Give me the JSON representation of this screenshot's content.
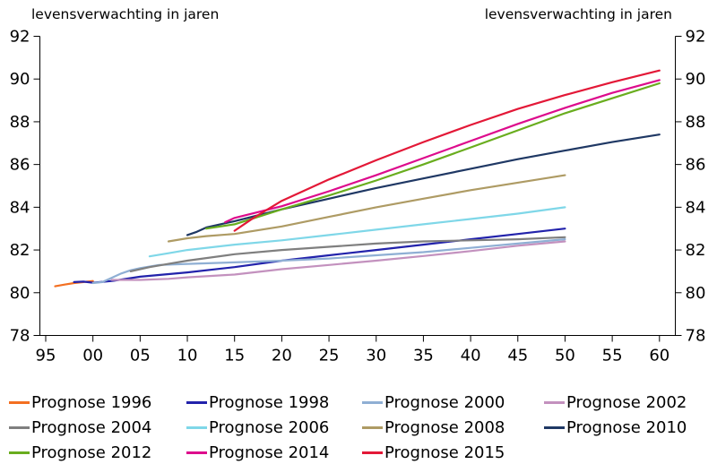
{
  "chart_data": {
    "type": "line",
    "title_left": "levensverwachting in jaren",
    "title_right": "levensverwachting in jaren",
    "grid": false,
    "legend_position": "bottom",
    "x_axis": {
      "tick_years": [
        1995,
        2000,
        2005,
        2010,
        2015,
        2020,
        2025,
        2030,
        2035,
        2040,
        2045,
        2050,
        2055,
        2060
      ],
      "tick_labels": [
        "95",
        "00",
        "05",
        "10",
        "15",
        "20",
        "25",
        "30",
        "35",
        "40",
        "45",
        "50",
        "55",
        "60"
      ],
      "min_year": 1994.3,
      "max_year": 2061.6
    },
    "y_axis": {
      "ticks": [
        78,
        80,
        82,
        84,
        86,
        88,
        90,
        92
      ],
      "tick_labels": [
        "78",
        "80",
        "82",
        "84",
        "86",
        "88",
        "90",
        "92"
      ],
      "min": 78,
      "max": 92
    },
    "series": [
      {
        "name": "Prognose 1996",
        "color": "#F36F21",
        "points": [
          [
            1996,
            80.3
          ],
          [
            1997,
            80.38
          ],
          [
            1998,
            80.45
          ],
          [
            1999,
            80.5
          ],
          [
            2000,
            80.55
          ]
        ]
      },
      {
        "name": "Prognose 1998",
        "color": "#2222AB",
        "points": [
          [
            1998,
            80.5
          ],
          [
            1999,
            80.52
          ],
          [
            2000,
            80.47
          ],
          [
            2002,
            80.55
          ],
          [
            2005,
            80.75
          ],
          [
            2010,
            80.95
          ],
          [
            2015,
            81.2
          ],
          [
            2020,
            81.5
          ],
          [
            2025,
            81.75
          ],
          [
            2030,
            82.0
          ],
          [
            2035,
            82.25
          ],
          [
            2040,
            82.5
          ],
          [
            2045,
            82.75
          ],
          [
            2050,
            83.0
          ]
        ]
      },
      {
        "name": "Prognose 2000",
        "color": "#8FAFD4",
        "points": [
          [
            2000,
            80.45
          ],
          [
            2001,
            80.5
          ],
          [
            2002,
            80.7
          ],
          [
            2003,
            80.9
          ],
          [
            2004,
            81.05
          ],
          [
            2005,
            81.15
          ],
          [
            2007,
            81.3
          ],
          [
            2010,
            81.35
          ],
          [
            2015,
            81.42
          ],
          [
            2020,
            81.5
          ],
          [
            2025,
            81.6
          ],
          [
            2030,
            81.75
          ],
          [
            2035,
            81.9
          ],
          [
            2040,
            82.1
          ],
          [
            2045,
            82.3
          ],
          [
            2050,
            82.5
          ]
        ]
      },
      {
        "name": "Prognose 2002",
        "color": "#C391BE",
        "points": [
          [
            2002,
            80.6
          ],
          [
            2005,
            80.6
          ],
          [
            2008,
            80.65
          ],
          [
            2010,
            80.72
          ],
          [
            2015,
            80.85
          ],
          [
            2020,
            81.1
          ],
          [
            2025,
            81.3
          ],
          [
            2030,
            81.5
          ],
          [
            2035,
            81.72
          ],
          [
            2040,
            81.95
          ],
          [
            2045,
            82.2
          ],
          [
            2050,
            82.4
          ]
        ]
      },
      {
        "name": "Prognose 2004",
        "color": "#7F7F7F",
        "points": [
          [
            2004,
            81.0
          ],
          [
            2006,
            81.2
          ],
          [
            2008,
            81.35
          ],
          [
            2010,
            81.5
          ],
          [
            2015,
            81.8
          ],
          [
            2020,
            82.0
          ],
          [
            2025,
            82.15
          ],
          [
            2030,
            82.3
          ],
          [
            2035,
            82.4
          ],
          [
            2040,
            82.45
          ],
          [
            2045,
            82.5
          ],
          [
            2050,
            82.6
          ]
        ]
      },
      {
        "name": "Prognose 2006",
        "color": "#7FD7E8",
        "points": [
          [
            2006,
            81.7
          ],
          [
            2008,
            81.85
          ],
          [
            2010,
            82.0
          ],
          [
            2015,
            82.25
          ],
          [
            2020,
            82.45
          ],
          [
            2025,
            82.7
          ],
          [
            2030,
            82.95
          ],
          [
            2035,
            83.2
          ],
          [
            2040,
            83.45
          ],
          [
            2045,
            83.7
          ],
          [
            2050,
            84.0
          ]
        ]
      },
      {
        "name": "Prognose 2008",
        "color": "#AE9B64",
        "points": [
          [
            2008,
            82.4
          ],
          [
            2010,
            82.55
          ],
          [
            2012,
            82.65
          ],
          [
            2015,
            82.75
          ],
          [
            2020,
            83.1
          ],
          [
            2025,
            83.55
          ],
          [
            2030,
            84.0
          ],
          [
            2035,
            84.4
          ],
          [
            2040,
            84.8
          ],
          [
            2045,
            85.15
          ],
          [
            2050,
            85.5
          ]
        ]
      },
      {
        "name": "Prognose 2010",
        "color": "#1F3864",
        "points": [
          [
            2010,
            82.7
          ],
          [
            2011,
            82.85
          ],
          [
            2012,
            83.05
          ],
          [
            2015,
            83.35
          ],
          [
            2020,
            83.9
          ],
          [
            2025,
            84.4
          ],
          [
            2030,
            84.9
          ],
          [
            2035,
            85.35
          ],
          [
            2040,
            85.8
          ],
          [
            2045,
            86.25
          ],
          [
            2050,
            86.65
          ],
          [
            2055,
            87.05
          ],
          [
            2060,
            87.4
          ]
        ]
      },
      {
        "name": "Prognose 2012",
        "color": "#69AD1E",
        "points": [
          [
            2012,
            83.0
          ],
          [
            2015,
            83.2
          ],
          [
            2020,
            83.9
          ],
          [
            2025,
            84.55
          ],
          [
            2030,
            85.25
          ],
          [
            2035,
            86.0
          ],
          [
            2040,
            86.8
          ],
          [
            2045,
            87.6
          ],
          [
            2050,
            88.4
          ],
          [
            2055,
            89.1
          ],
          [
            2060,
            89.8
          ]
        ]
      },
      {
        "name": "Prognose 2014",
        "color": "#DD0B8C",
        "points": [
          [
            2014,
            83.3
          ],
          [
            2015,
            83.5
          ],
          [
            2020,
            84.05
          ],
          [
            2025,
            84.75
          ],
          [
            2030,
            85.5
          ],
          [
            2035,
            86.3
          ],
          [
            2040,
            87.1
          ],
          [
            2045,
            87.9
          ],
          [
            2050,
            88.65
          ],
          [
            2055,
            89.35
          ],
          [
            2060,
            89.95
          ]
        ]
      },
      {
        "name": "Prognose 2015",
        "color": "#E31837",
        "points": [
          [
            2015,
            82.9
          ],
          [
            2017,
            83.5
          ],
          [
            2020,
            84.3
          ],
          [
            2025,
            85.3
          ],
          [
            2030,
            86.2
          ],
          [
            2035,
            87.05
          ],
          [
            2040,
            87.85
          ],
          [
            2045,
            88.6
          ],
          [
            2050,
            89.25
          ],
          [
            2055,
            89.85
          ],
          [
            2060,
            90.4
          ]
        ]
      }
    ]
  },
  "colors": {
    "axis": "#000000",
    "text": "#000000",
    "background": "#FFFFFF"
  }
}
